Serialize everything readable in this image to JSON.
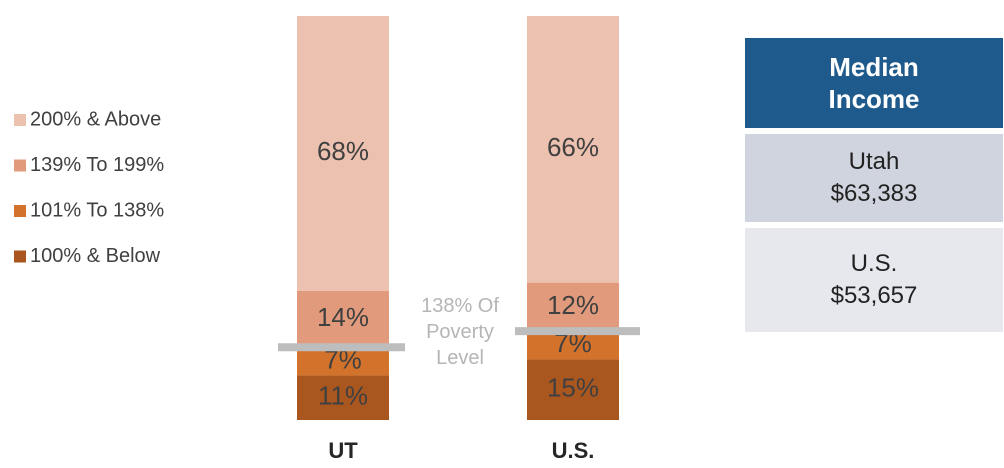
{
  "chart_data": {
    "type": "bar",
    "stacked": true,
    "categories": [
      "UT",
      "U.S."
    ],
    "series": [
      {
        "name": "100% & Below",
        "color": "#a9561f",
        "values": [
          11,
          15
        ],
        "value_labels": [
          "11%",
          "15%"
        ]
      },
      {
        "name": "101% To 138%",
        "color": "#d2722b",
        "values": [
          7,
          7
        ],
        "value_labels": [
          "7%",
          "7%"
        ]
      },
      {
        "name": "139% To 199%",
        "color": "#e19b7c",
        "values": [
          14,
          12
        ],
        "value_labels": [
          "14%",
          "12%"
        ]
      },
      {
        "name": "200% & Above",
        "color": "#ecc1af",
        "values": [
          68,
          66
        ],
        "value_labels": [
          "68%",
          "66%"
        ]
      }
    ],
    "ylim": [
      0,
      100
    ],
    "annotation": "138% Of Poverty Level",
    "legend": "left"
  },
  "table": {
    "header": "Median Income",
    "rows": [
      [
        "Utah",
        "$63,383"
      ],
      [
        "U.S.",
        "$53,657"
      ]
    ]
  }
}
